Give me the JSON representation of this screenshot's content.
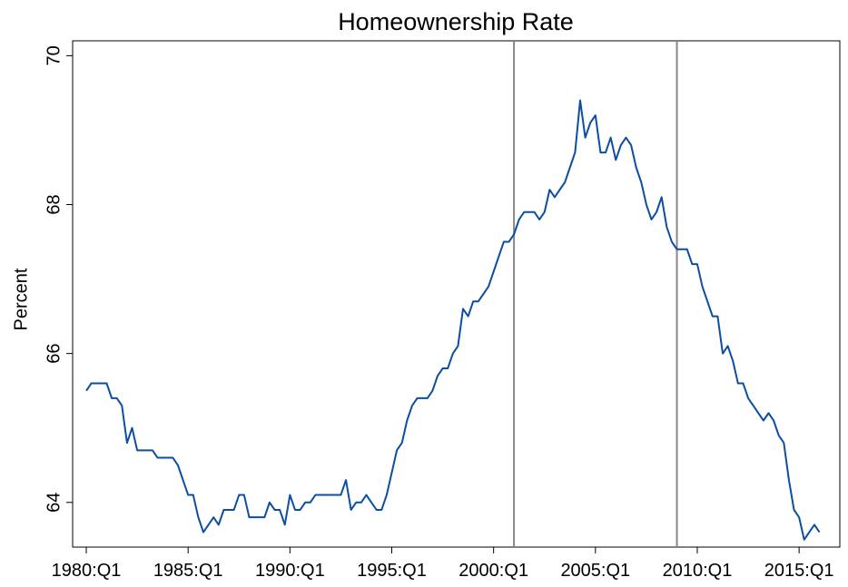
{
  "chart_data": {
    "type": "line",
    "title": "Homeownership Rate",
    "y_label": "Percent",
    "x": [
      1980,
      1980.25,
      1980.5,
      1980.75,
      1981,
      1981.25,
      1981.5,
      1981.75,
      1982,
      1982.25,
      1982.5,
      1982.75,
      1983,
      1983.25,
      1983.5,
      1983.75,
      1984,
      1984.25,
      1984.5,
      1984.75,
      1985,
      1985.25,
      1985.5,
      1985.75,
      1986,
      1986.25,
      1986.5,
      1986.75,
      1987,
      1987.25,
      1987.5,
      1987.75,
      1988,
      1988.25,
      1988.5,
      1988.75,
      1989,
      1989.25,
      1989.5,
      1989.75,
      1990,
      1990.25,
      1990.5,
      1990.75,
      1991,
      1991.25,
      1991.5,
      1991.75,
      1992,
      1992.25,
      1992.5,
      1992.75,
      1993,
      1993.25,
      1993.5,
      1993.75,
      1994,
      1994.25,
      1994.5,
      1994.75,
      1995,
      1995.25,
      1995.5,
      1995.75,
      1996,
      1996.25,
      1996.5,
      1996.75,
      1997,
      1997.25,
      1997.5,
      1997.75,
      1998,
      1998.25,
      1998.5,
      1998.75,
      1999,
      1999.25,
      1999.5,
      1999.75,
      2000,
      2000.25,
      2000.5,
      2000.75,
      2001,
      2001.25,
      2001.5,
      2001.75,
      2002,
      2002.25,
      2002.5,
      2002.75,
      2003,
      2003.25,
      2003.5,
      2003.75,
      2004,
      2004.25,
      2004.5,
      2004.75,
      2005,
      2005.25,
      2005.5,
      2005.75,
      2006,
      2006.25,
      2006.5,
      2006.75,
      2007,
      2007.25,
      2007.5,
      2007.75,
      2008,
      2008.25,
      2008.5,
      2008.75,
      2009,
      2009.25,
      2009.5,
      2009.75,
      2010,
      2010.25,
      2010.5,
      2010.75,
      2011,
      2011.25,
      2011.5,
      2011.75,
      2012,
      2012.25,
      2012.5,
      2012.75,
      2013,
      2013.25,
      2013.5,
      2013.75,
      2014,
      2014.25,
      2014.5,
      2014.75,
      2015,
      2015.25,
      2015.5,
      2015.75,
      2016
    ],
    "series": [
      {
        "name": "Homeownership Rate",
        "color": "#0b4ea2",
        "values": [
          65.5,
          65.6,
          65.6,
          65.6,
          65.6,
          65.4,
          65.4,
          65.3,
          64.8,
          65.0,
          64.7,
          64.7,
          64.7,
          64.7,
          64.6,
          64.6,
          64.6,
          64.6,
          64.5,
          64.3,
          64.1,
          64.1,
          63.8,
          63.6,
          63.7,
          63.8,
          63.7,
          63.9,
          63.9,
          63.9,
          64.1,
          64.1,
          63.8,
          63.8,
          63.8,
          63.8,
          64.0,
          63.9,
          63.9,
          63.7,
          64.1,
          63.9,
          63.9,
          64.0,
          64.0,
          64.1,
          64.1,
          64.1,
          64.1,
          64.1,
          64.1,
          64.3,
          63.9,
          64.0,
          64.0,
          64.1,
          64.0,
          63.9,
          63.9,
          64.1,
          64.4,
          64.7,
          64.8,
          65.1,
          65.3,
          65.4,
          65.4,
          65.4,
          65.5,
          65.7,
          65.8,
          65.8,
          66.0,
          66.1,
          66.6,
          66.5,
          66.7,
          66.7,
          66.8,
          66.9,
          67.1,
          67.3,
          67.5,
          67.5,
          67.6,
          67.8,
          67.9,
          67.9,
          67.9,
          67.8,
          67.9,
          68.2,
          68.1,
          68.2,
          68.3,
          68.5,
          68.7,
          69.4,
          68.9,
          69.1,
          69.2,
          68.7,
          68.7,
          68.9,
          68.6,
          68.8,
          68.9,
          68.8,
          68.5,
          68.3,
          68.0,
          67.8,
          67.9,
          68.1,
          67.7,
          67.5,
          67.4,
          67.4,
          67.4,
          67.2,
          67.2,
          66.9,
          66.7,
          66.5,
          66.5,
          66.0,
          66.1,
          65.9,
          65.6,
          65.6,
          65.4,
          65.3,
          65.2,
          65.1,
          65.2,
          65.1,
          64.9,
          64.8,
          64.3,
          63.9,
          63.8,
          63.5,
          63.6,
          63.7,
          63.6
        ]
      }
    ],
    "xlim": [
      1979.33,
      2017.0
    ],
    "xticks": [
      {
        "value": 1980,
        "label": "1980:Q1"
      },
      {
        "value": 1985,
        "label": "1985:Q1"
      },
      {
        "value": 1990,
        "label": "1990:Q1"
      },
      {
        "value": 1995,
        "label": "1995:Q1"
      },
      {
        "value": 2000,
        "label": "2000:Q1"
      },
      {
        "value": 2005,
        "label": "2005:Q1"
      },
      {
        "value": 2010,
        "label": "2010:Q1"
      },
      {
        "value": 2015,
        "label": "2015:Q1"
      }
    ],
    "ylim": [
      63.4,
      70.2
    ],
    "yticks": [
      64,
      66,
      68,
      70
    ],
    "vlines": [
      2001.0,
      2009.0
    ],
    "vline_color": "#888888"
  }
}
